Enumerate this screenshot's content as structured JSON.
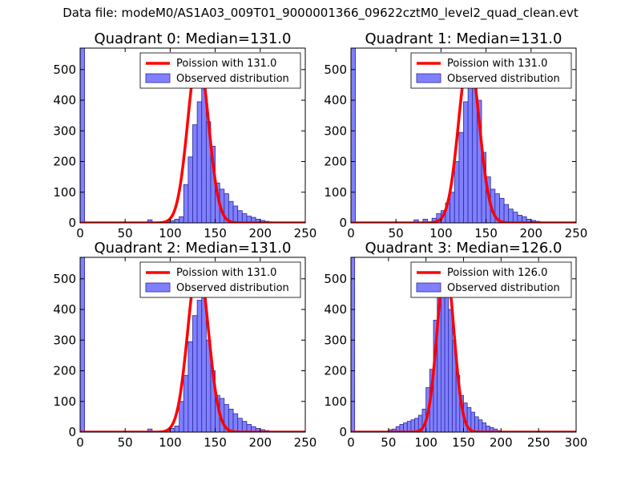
{
  "suptitle": "Data file: modeM0/AS1A03_009T01_9000001366_09622cztM0_level2_quad_clean.evt",
  "colors": {
    "hist_fill": "#8080ff",
    "hist_edge": "#2a2a9e",
    "poisson": "#ff0000"
  },
  "chart_data": [
    {
      "type": "bar",
      "title": "Quadrant 0: Median=131.0",
      "median": 131.0,
      "xlim": [
        0,
        250
      ],
      "ylim": [
        0,
        570
      ],
      "xticks": [
        0,
        50,
        100,
        150,
        200,
        250
      ],
      "yticks": [
        0,
        100,
        200,
        300,
        400,
        500
      ],
      "bin_width": 5,
      "bins": [
        [
          0,
          580
        ],
        [
          75,
          10
        ],
        [
          95,
          3
        ],
        [
          100,
          7
        ],
        [
          105,
          12
        ],
        [
          110,
          20
        ],
        [
          115,
          125
        ],
        [
          120,
          215
        ],
        [
          125,
          320
        ],
        [
          130,
          395
        ],
        [
          135,
          520
        ],
        [
          140,
          330
        ],
        [
          145,
          250
        ],
        [
          150,
          130
        ],
        [
          155,
          110
        ],
        [
          160,
          95
        ],
        [
          165,
          70
        ],
        [
          170,
          55
        ],
        [
          175,
          40
        ],
        [
          180,
          30
        ],
        [
          185,
          22
        ],
        [
          190,
          18
        ],
        [
          195,
          12
        ],
        [
          200,
          8
        ],
        [
          205,
          5
        ],
        [
          210,
          3
        ]
      ],
      "poisson_peak": 550,
      "legend": {
        "line": "Poission with 131.0",
        "bar": "Observed distribution"
      }
    },
    {
      "type": "bar",
      "title": "Quadrant 1: Median=131.0",
      "median": 131.0,
      "xlim": [
        0,
        250
      ],
      "ylim": [
        0,
        570
      ],
      "xticks": [
        0,
        50,
        100,
        150,
        200,
        250
      ],
      "yticks": [
        0,
        100,
        200,
        300,
        400,
        500
      ],
      "bin_width": 5,
      "bins": [
        [
          0,
          580
        ],
        [
          70,
          10
        ],
        [
          80,
          12
        ],
        [
          90,
          15
        ],
        [
          95,
          30
        ],
        [
          100,
          40
        ],
        [
          105,
          65
        ],
        [
          110,
          100
        ],
        [
          115,
          200
        ],
        [
          120,
          295
        ],
        [
          125,
          395
        ],
        [
          130,
          450
        ],
        [
          135,
          530
        ],
        [
          140,
          400
        ],
        [
          145,
          230
        ],
        [
          150,
          150
        ],
        [
          155,
          110
        ],
        [
          160,
          95
        ],
        [
          165,
          80
        ],
        [
          170,
          60
        ],
        [
          175,
          45
        ],
        [
          180,
          35
        ],
        [
          185,
          25
        ],
        [
          190,
          20
        ],
        [
          195,
          12
        ],
        [
          200,
          8
        ],
        [
          205,
          5
        ]
      ],
      "poisson_peak": 545,
      "legend": {
        "line": "Poission with 131.0",
        "bar": "Observed distribution"
      }
    },
    {
      "type": "bar",
      "title": "Quadrant 2: Median=131.0",
      "median": 131.0,
      "xlim": [
        0,
        250
      ],
      "ylim": [
        0,
        570
      ],
      "xticks": [
        0,
        50,
        100,
        150,
        200,
        250
      ],
      "yticks": [
        0,
        100,
        200,
        300,
        400,
        500
      ],
      "bin_width": 5,
      "bins": [
        [
          0,
          580
        ],
        [
          75,
          10
        ],
        [
          95,
          5
        ],
        [
          100,
          12
        ],
        [
          105,
          20
        ],
        [
          110,
          100
        ],
        [
          115,
          185
        ],
        [
          120,
          295
        ],
        [
          125,
          380
        ],
        [
          130,
          430
        ],
        [
          135,
          520
        ],
        [
          140,
          300
        ],
        [
          145,
          200
        ],
        [
          150,
          120
        ],
        [
          155,
          110
        ],
        [
          160,
          90
        ],
        [
          165,
          75
        ],
        [
          170,
          60
        ],
        [
          175,
          45
        ],
        [
          180,
          35
        ],
        [
          185,
          25
        ],
        [
          190,
          18
        ],
        [
          195,
          12
        ],
        [
          200,
          8
        ],
        [
          205,
          5
        ]
      ],
      "poisson_peak": 550,
      "legend": {
        "line": "Poission with 131.0",
        "bar": "Observed distribution"
      }
    },
    {
      "type": "bar",
      "title": "Quadrant 3: Median=126.0",
      "median": 126.0,
      "xlim": [
        0,
        300
      ],
      "ylim": [
        0,
        570
      ],
      "xticks": [
        0,
        50,
        100,
        150,
        200,
        250,
        300
      ],
      "yticks": [
        0,
        100,
        200,
        300,
        400,
        500
      ],
      "bin_width": 5,
      "bins": [
        [
          0,
          580
        ],
        [
          50,
          8
        ],
        [
          55,
          10
        ],
        [
          60,
          18
        ],
        [
          65,
          25
        ],
        [
          70,
          30
        ],
        [
          75,
          35
        ],
        [
          80,
          40
        ],
        [
          85,
          45
        ],
        [
          90,
          55
        ],
        [
          95,
          75
        ],
        [
          100,
          145
        ],
        [
          105,
          205
        ],
        [
          110,
          365
        ],
        [
          115,
          480
        ],
        [
          120,
          530
        ],
        [
          125,
          500
        ],
        [
          130,
          400
        ],
        [
          135,
          300
        ],
        [
          140,
          185
        ],
        [
          145,
          120
        ],
        [
          150,
          95
        ],
        [
          155,
          80
        ],
        [
          160,
          65
        ],
        [
          165,
          50
        ],
        [
          170,
          40
        ],
        [
          175,
          30
        ],
        [
          180,
          20
        ],
        [
          185,
          15
        ],
        [
          190,
          10
        ],
        [
          195,
          5
        ],
        [
          200,
          3
        ]
      ],
      "poisson_peak": 545,
      "legend": {
        "line": "Poission with 126.0",
        "bar": "Observed distribution"
      }
    }
  ]
}
